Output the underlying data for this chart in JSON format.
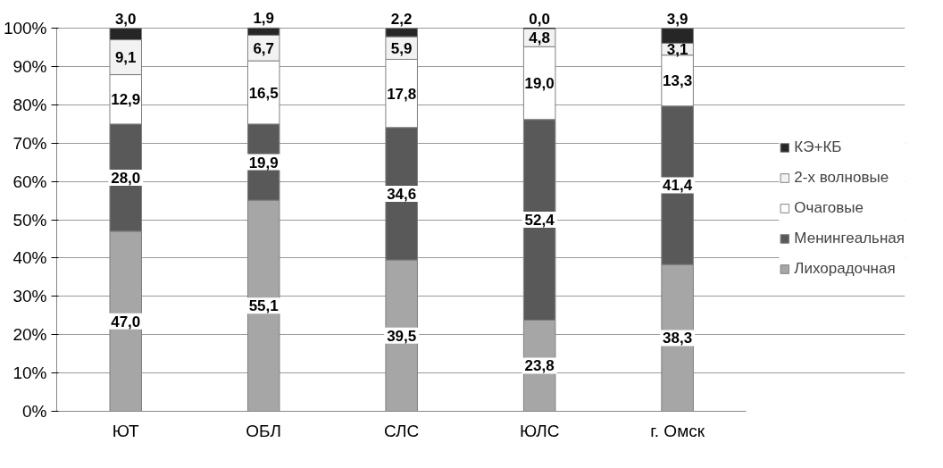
{
  "chart_data": {
    "type": "bar",
    "stacked": true,
    "categories": [
      "ЮТ",
      "ОБЛ",
      "СЛС",
      "ЮЛС",
      "г. Омск"
    ],
    "series": [
      {
        "name": "Лихорадочная",
        "color": "#a6a6a6",
        "values": [
          47.0,
          55.1,
          39.5,
          23.8,
          38.3
        ],
        "value_labels": [
          "47,0",
          "55,1",
          "39,5",
          "23,8",
          "38,3"
        ]
      },
      {
        "name": "Менингеальная",
        "color": "#595959",
        "values": [
          28.0,
          19.9,
          34.6,
          52.4,
          41.4
        ],
        "value_labels": [
          "28,0",
          "19,9",
          "34,6",
          "52,4",
          "41,4"
        ]
      },
      {
        "name": "Очаговые",
        "color": "#ffffff",
        "values": [
          12.9,
          16.5,
          17.8,
          19.0,
          13.3
        ],
        "value_labels": [
          "12,9",
          "16,5",
          "17,8",
          "19,0",
          "13,3"
        ]
      },
      {
        "name": "2-х волновые",
        "color": "#f2f2f2",
        "values": [
          9.1,
          6.7,
          5.9,
          4.8,
          3.1
        ],
        "value_labels": [
          "9,1",
          "6,7",
          "5,9",
          "4,8",
          "3,1"
        ]
      },
      {
        "name": "КЭ+КБ",
        "color": "#262626",
        "values": [
          3.0,
          1.9,
          2.2,
          0.0,
          3.9
        ],
        "value_labels": [
          "3,0",
          "1,9",
          "2,2",
          "0,0",
          "3,9"
        ]
      }
    ],
    "ylim": [
      0,
      100.1
    ],
    "yticks": [
      {
        "value": 0,
        "label": "0%"
      },
      {
        "value": 10,
        "label": "10%"
      },
      {
        "value": 20,
        "label": "20%"
      },
      {
        "value": 30,
        "label": "30%"
      },
      {
        "value": 40,
        "label": "40%"
      },
      {
        "value": 50,
        "label": "50%"
      },
      {
        "value": 60,
        "label": "60%"
      },
      {
        "value": 70,
        "label": "70%"
      },
      {
        "value": 80,
        "label": "80%"
      },
      {
        "value": 90,
        "label": "90%"
      },
      {
        "value": 100,
        "label": "100%"
      }
    ],
    "grid": "y",
    "legend": "right"
  }
}
